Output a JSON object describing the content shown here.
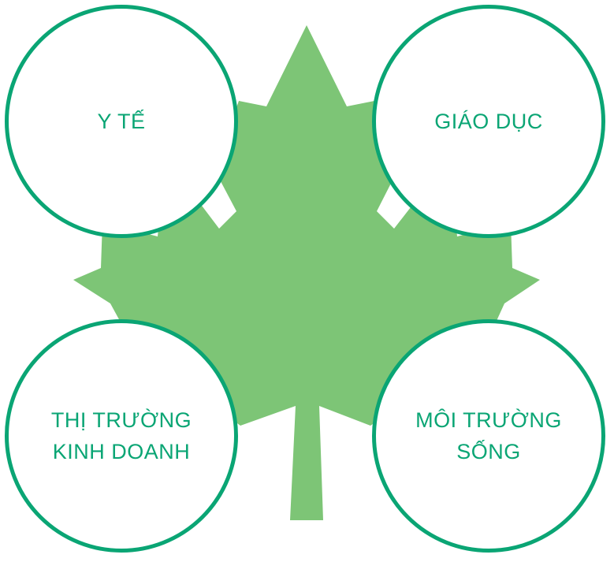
{
  "colors": {
    "leaf": "#7dc576",
    "accent": "#0aa574",
    "circle_fill": "#ffffff"
  },
  "diagram": {
    "center_icon": "maple-leaf-icon",
    "topics": [
      {
        "line1": "Y TẾ",
        "line2": ""
      },
      {
        "line1": "GIÁO DỤC",
        "line2": ""
      },
      {
        "line1": "THỊ TRƯỜNG",
        "line2": "KINH DOANH"
      },
      {
        "line1": "MÔI TRƯỜNG",
        "line2": "SỐNG"
      }
    ]
  }
}
